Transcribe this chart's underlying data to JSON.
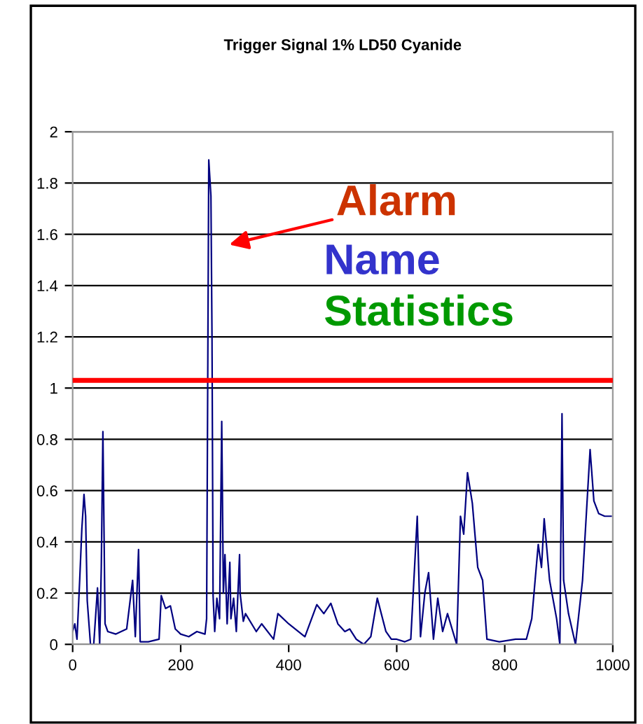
{
  "chart_data": {
    "type": "line",
    "title": "Trigger Signal 1% LD50 Cyanide",
    "x": [
      0,
      4,
      8,
      13,
      17,
      21,
      24,
      27,
      33,
      39,
      46,
      50,
      53,
      56,
      60,
      65,
      80,
      100,
      111,
      116,
      122,
      125,
      140,
      160,
      164,
      172,
      181,
      190,
      200,
      215,
      230,
      245,
      248,
      252,
      256,
      258,
      260,
      263,
      267,
      272,
      276,
      279,
      282,
      286,
      291,
      293,
      298,
      303,
      309,
      310,
      316,
      320,
      340,
      350,
      372,
      380,
      400,
      430,
      452,
      465,
      478,
      491,
      504,
      513,
      525,
      539,
      552,
      564,
      580,
      590,
      600,
      615,
      626,
      638,
      644,
      652,
      659,
      668,
      676,
      685,
      694,
      711,
      718,
      724,
      731,
      740,
      750,
      759,
      767,
      790,
      820,
      840,
      850,
      862,
      868,
      873,
      883,
      896,
      902,
      906,
      909,
      918,
      931,
      944,
      950,
      958,
      965,
      974,
      985,
      997
    ],
    "values": [
      0.05,
      0.08,
      0.02,
      0.25,
      0.45,
      0.585,
      0.5,
      0.17,
      0,
      0,
      0.22,
      0,
      0.3,
      0.83,
      0.08,
      0.05,
      0.04,
      0.06,
      0.25,
      0.03,
      0.37,
      0.01,
      0.01,
      0.02,
      0.19,
      0.14,
      0.15,
      0.06,
      0.04,
      0.03,
      0.05,
      0.04,
      0.1,
      1.89,
      1.75,
      1.2,
      0.19,
      0.05,
      0.18,
      0.1,
      0.87,
      0.2,
      0.35,
      0.08,
      0.32,
      0.1,
      0.18,
      0.05,
      0.35,
      0.2,
      0.09,
      0.12,
      0.05,
      0.08,
      0.02,
      0.12,
      0.08,
      0.03,
      0.155,
      0.12,
      0.16,
      0.08,
      0.05,
      0.06,
      0.02,
      0,
      0.03,
      0.18,
      0.05,
      0.02,
      0.02,
      0.01,
      0.02,
      0.5,
      0.03,
      0.2,
      0.28,
      0.02,
      0.18,
      0.05,
      0.12,
      0,
      0.5,
      0.43,
      0.67,
      0.55,
      0.3,
      0.25,
      0.02,
      0.01,
      0.02,
      0.02,
      0.1,
      0.39,
      0.3,
      0.49,
      0.25,
      0.1,
      0,
      0.9,
      0.25,
      0.12,
      0,
      0.25,
      0.47,
      0.76,
      0.56,
      0.51,
      0.5,
      0.5
    ],
    "color": "#000080",
    "xlim": [
      0,
      1000
    ],
    "ylim": [
      0,
      2
    ],
    "xticks": [
      0,
      200,
      400,
      600,
      800,
      1000
    ],
    "yticks": [
      0,
      0.2,
      0.4,
      0.6,
      0.8,
      1,
      1.2,
      1.4,
      1.6,
      1.8,
      2
    ],
    "grid": "y",
    "ref_lines": [
      {
        "axis": "y",
        "value": 1.03,
        "color": "#ff0000"
      }
    ],
    "annotations": [
      "Alarm",
      "Name",
      "Statistics"
    ]
  }
}
